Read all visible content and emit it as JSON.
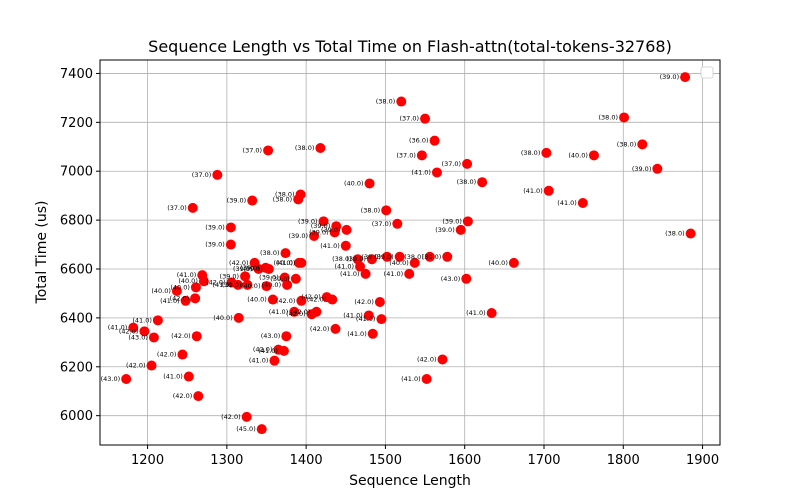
{
  "chart_data": {
    "type": "scatter",
    "title": "Sequence Length vs Total Time on Flash-attn(total-tokens-32768)",
    "xlabel": "Sequence Length",
    "ylabel": "Total Time (us)",
    "xlim": [
      1140,
      1922
    ],
    "ylim": [
      5880,
      7455
    ],
    "xticks": [
      1200,
      1300,
      1400,
      1500,
      1600,
      1700,
      1800,
      1900
    ],
    "yticks": [
      6000,
      6200,
      6400,
      6600,
      6800,
      7000,
      7200,
      7400
    ],
    "grid": true,
    "legend": "upper-right (empty)",
    "marker_color": "#ff0000",
    "points": [
      {
        "x": 1173,
        "y": 6150,
        "label": "(43.0)"
      },
      {
        "x": 1182,
        "y": 6360,
        "label": "(41.0)"
      },
      {
        "x": 1196,
        "y": 6345,
        "label": "(42.0)"
      },
      {
        "x": 1205,
        "y": 6205,
        "label": "(42.0)"
      },
      {
        "x": 1208,
        "y": 6320,
        "label": "(43.0)"
      },
      {
        "x": 1213,
        "y": 6390,
        "label": "(41.0)"
      },
      {
        "x": 1237,
        "y": 6510,
        "label": "(40.0)"
      },
      {
        "x": 1244,
        "y": 6250,
        "label": "(42.0)"
      },
      {
        "x": 1248,
        "y": 6470,
        "label": "(41.0)"
      },
      {
        "x": 1252,
        "y": 6160,
        "label": "(41.0)"
      },
      {
        "x": 1257,
        "y": 6850,
        "label": "(37.0)"
      },
      {
        "x": 1260,
        "y": 6480,
        "label": "(42.0)"
      },
      {
        "x": 1261,
        "y": 6525,
        "label": "(40.0)"
      },
      {
        "x": 1262,
        "y": 6325,
        "label": "(42.0)"
      },
      {
        "x": 1264,
        "y": 6080,
        "label": "(42.0)"
      },
      {
        "x": 1269,
        "y": 6575,
        "label": "(41.0)"
      },
      {
        "x": 1271,
        "y": 6550,
        "label": "(40.0)"
      },
      {
        "x": 1288,
        "y": 6985,
        "label": "(37.0)"
      },
      {
        "x": 1305,
        "y": 6770,
        "label": "(39.0)"
      },
      {
        "x": 1305,
        "y": 6700,
        "label": "(39.0)"
      },
      {
        "x": 1306,
        "y": 6545,
        "label": "(42.0)"
      },
      {
        "x": 1314,
        "y": 6535,
        "label": "(41.0)"
      },
      {
        "x": 1315,
        "y": 6400,
        "label": "(40.0)"
      },
      {
        "x": 1323,
        "y": 6570,
        "label": "(39.0)"
      },
      {
        "x": 1325,
        "y": 5995,
        "label": "(42.0)"
      },
      {
        "x": 1326,
        "y": 6535,
        "label": "(39.0)"
      },
      {
        "x": 1332,
        "y": 6880,
        "label": "(39.0)"
      },
      {
        "x": 1335,
        "y": 6625,
        "label": "(42.0)"
      },
      {
        "x": 1340,
        "y": 6600,
        "label": "(39.0)"
      },
      {
        "x": 1344,
        "y": 5945,
        "label": "(45.0)"
      },
      {
        "x": 1349,
        "y": 6605,
        "label": "(39.0)"
      },
      {
        "x": 1350,
        "y": 6530,
        "label": "(40.0)"
      },
      {
        "x": 1352,
        "y": 7085,
        "label": "(37.0)"
      },
      {
        "x": 1353,
        "y": 6600,
        "label": "(39.0)"
      },
      {
        "x": 1358,
        "y": 6475,
        "label": "(40.0)"
      },
      {
        "x": 1360,
        "y": 6225,
        "label": "(41.0)"
      },
      {
        "x": 1365,
        "y": 6270,
        "label": "(42.0)"
      },
      {
        "x": 1372,
        "y": 6265,
        "label": "(41.0)"
      },
      {
        "x": 1373,
        "y": 6565,
        "label": "(39.0)"
      },
      {
        "x": 1374,
        "y": 6665,
        "label": "(38.0)"
      },
      {
        "x": 1375,
        "y": 6325,
        "label": "(43.0)"
      },
      {
        "x": 1376,
        "y": 6535,
        "label": "(40.0)"
      },
      {
        "x": 1385,
        "y": 6425,
        "label": "(41.0)"
      },
      {
        "x": 1387,
        "y": 6560,
        "label": "(39.0)"
      },
      {
        "x": 1390,
        "y": 6885,
        "label": "(38.0)"
      },
      {
        "x": 1391,
        "y": 6625,
        "label": "(40.0)"
      },
      {
        "x": 1393,
        "y": 6905,
        "label": "(38.0)"
      },
      {
        "x": 1394,
        "y": 6625,
        "label": "(41.0)"
      },
      {
        "x": 1394,
        "y": 6470,
        "label": "(42.0)"
      },
      {
        "x": 1407,
        "y": 6415,
        "label": "(42.0)"
      },
      {
        "x": 1410,
        "y": 6735,
        "label": "(39.0)"
      },
      {
        "x": 1413,
        "y": 6425,
        "label": "(42.0)"
      },
      {
        "x": 1418,
        "y": 7095,
        "label": "(38.0)"
      },
      {
        "x": 1422,
        "y": 6795,
        "label": "(39.0)"
      },
      {
        "x": 1426,
        "y": 6485,
        "label": "(42.0)"
      },
      {
        "x": 1433,
        "y": 6475,
        "label": "(42.0)"
      },
      {
        "x": 1436,
        "y": 6750,
        "label": "(39.0)"
      },
      {
        "x": 1437,
        "y": 6355,
        "label": "(42.0)"
      },
      {
        "x": 1438,
        "y": 6775,
        "label": "(39.0)"
      },
      {
        "x": 1450,
        "y": 6695,
        "label": "(41.0)"
      },
      {
        "x": 1451,
        "y": 6760,
        "label": "(39.0)"
      },
      {
        "x": 1465,
        "y": 6640,
        "label": "(38.0)"
      },
      {
        "x": 1468,
        "y": 6610,
        "label": "(41.0)"
      },
      {
        "x": 1475,
        "y": 6580,
        "label": "(41.0)"
      },
      {
        "x": 1479,
        "y": 6410,
        "label": "(41.0)"
      },
      {
        "x": 1480,
        "y": 6950,
        "label": "(40.0)"
      },
      {
        "x": 1483,
        "y": 6640,
        "label": "(39.0)"
      },
      {
        "x": 1484,
        "y": 6335,
        "label": "(41.0)"
      },
      {
        "x": 1493,
        "y": 6465,
        "label": "(42.0)"
      },
      {
        "x": 1495,
        "y": 6395,
        "label": "(41.0)"
      },
      {
        "x": 1501,
        "y": 6840,
        "label": "(38.0)"
      },
      {
        "x": 1502,
        "y": 6650,
        "label": "(39.0)"
      },
      {
        "x": 1515,
        "y": 6785,
        "label": "(37.0)"
      },
      {
        "x": 1518,
        "y": 6650,
        "label": "(39.0)"
      },
      {
        "x": 1520,
        "y": 7285,
        "label": "(38.0)"
      },
      {
        "x": 1530,
        "y": 6580,
        "label": "(41.0)"
      },
      {
        "x": 1537,
        "y": 6625,
        "label": "(40.0)"
      },
      {
        "x": 1546,
        "y": 7065,
        "label": "(37.0)"
      },
      {
        "x": 1550,
        "y": 7215,
        "label": "(37.0)"
      },
      {
        "x": 1552,
        "y": 6150,
        "label": "(41.0)"
      },
      {
        "x": 1556,
        "y": 6650,
        "label": "(38.0)"
      },
      {
        "x": 1562,
        "y": 7125,
        "label": "(36.0)"
      },
      {
        "x": 1565,
        "y": 6995,
        "label": "(41.0)"
      },
      {
        "x": 1572,
        "y": 6230,
        "label": "(42.0)"
      },
      {
        "x": 1578,
        "y": 6650,
        "label": "(39.0)"
      },
      {
        "x": 1595,
        "y": 6760,
        "label": "(39.0)"
      },
      {
        "x": 1602,
        "y": 6560,
        "label": "(43.0)"
      },
      {
        "x": 1603,
        "y": 7030,
        "label": "(37.0)"
      },
      {
        "x": 1604,
        "y": 6795,
        "label": "(39.0)"
      },
      {
        "x": 1622,
        "y": 6955,
        "label": "(38.0)"
      },
      {
        "x": 1634,
        "y": 6420,
        "label": "(41.0)"
      },
      {
        "x": 1662,
        "y": 6625,
        "label": "(40.0)"
      },
      {
        "x": 1703,
        "y": 7075,
        "label": "(38.0)"
      },
      {
        "x": 1706,
        "y": 6920,
        "label": "(41.0)"
      },
      {
        "x": 1749,
        "y": 6870,
        "label": "(41.0)"
      },
      {
        "x": 1763,
        "y": 7065,
        "label": "(40.0)"
      },
      {
        "x": 1801,
        "y": 7220,
        "label": "(38.0)"
      },
      {
        "x": 1824,
        "y": 7110,
        "label": "(38.0)"
      },
      {
        "x": 1843,
        "y": 7010,
        "label": "(39.0)"
      },
      {
        "x": 1878,
        "y": 7385,
        "label": "(39.0)"
      },
      {
        "x": 1885,
        "y": 6745,
        "label": "(38.0)"
      }
    ]
  }
}
